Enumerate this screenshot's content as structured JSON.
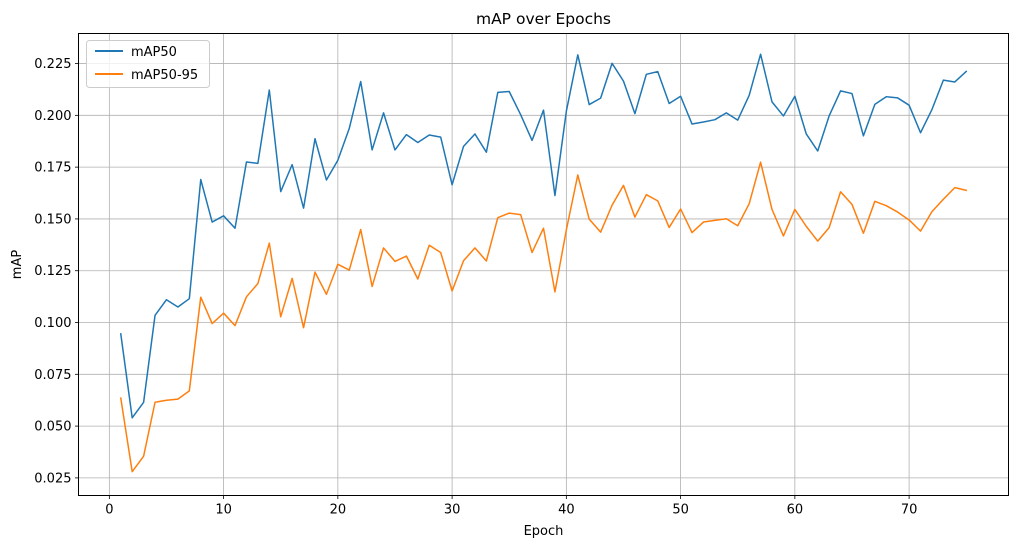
{
  "chart_data": {
    "type": "line",
    "title": "mAP over Epochs",
    "xlabel": "Epoch",
    "ylabel": "mAP",
    "xlim": [
      -2.7,
      78.7
    ],
    "ylim": [
      0.0165,
      0.2395
    ],
    "xticks": [
      0,
      10,
      20,
      30,
      40,
      50,
      60,
      70
    ],
    "xtick_labels": [
      "0",
      "10",
      "20",
      "30",
      "40",
      "50",
      "60",
      "70"
    ],
    "yticks": [
      0.025,
      0.05,
      0.075,
      0.1,
      0.125,
      0.15,
      0.175,
      0.2,
      0.225
    ],
    "ytick_labels": [
      "0.025",
      "0.050",
      "0.075",
      "0.100",
      "0.125",
      "0.150",
      "0.175",
      "0.200",
      "0.225"
    ],
    "grid": true,
    "legend_position": "top-left",
    "x": [
      1,
      2,
      3,
      4,
      5,
      6,
      7,
      8,
      9,
      10,
      11,
      12,
      13,
      14,
      15,
      16,
      17,
      18,
      19,
      20,
      21,
      22,
      23,
      24,
      25,
      26,
      27,
      28,
      29,
      30,
      31,
      32,
      33,
      34,
      35,
      36,
      37,
      38,
      39,
      40,
      41,
      42,
      43,
      44,
      45,
      46,
      47,
      48,
      49,
      50,
      51,
      52,
      53,
      54,
      55,
      56,
      57,
      58,
      59,
      60,
      61,
      62,
      63,
      64,
      65,
      66,
      67,
      68,
      69,
      70,
      71,
      72,
      73,
      74,
      75
    ],
    "series": [
      {
        "name": "mAP50",
        "color": "#1f77b4",
        "values": [
          0.0945,
          0.054,
          0.0615,
          0.1035,
          0.111,
          0.1075,
          0.1115,
          0.169,
          0.1485,
          0.1515,
          0.1455,
          0.1775,
          0.1768,
          0.2122,
          0.1632,
          0.1762,
          0.1552,
          0.1887,
          0.1688,
          0.1783,
          0.1937,
          0.2163,
          0.1833,
          0.2012,
          0.1833,
          0.1907,
          0.1869,
          0.1905,
          0.1895,
          0.1665,
          0.185,
          0.191,
          0.1822,
          0.2111,
          0.2115,
          0.2003,
          0.1879,
          0.2025,
          0.1613,
          0.202,
          0.2292,
          0.2052,
          0.2083,
          0.2251,
          0.2165,
          0.2008,
          0.2198,
          0.2211,
          0.2057,
          0.2092,
          0.1958,
          0.1968,
          0.1979,
          0.2012,
          0.1977,
          0.2096,
          0.2295,
          0.2065,
          0.1997,
          0.2092,
          0.191,
          0.1828,
          0.1997,
          0.2118,
          0.2105,
          0.1901,
          0.2053,
          0.209,
          0.2084,
          0.2049,
          0.1916,
          0.2028,
          0.217,
          0.2161,
          0.2212
        ]
      },
      {
        "name": "mAP50-95",
        "color": "#ff7f0e",
        "values": [
          0.0635,
          0.028,
          0.0355,
          0.0615,
          0.0625,
          0.063,
          0.067,
          0.1122,
          0.0995,
          0.1045,
          0.0985,
          0.1124,
          0.1188,
          0.1383,
          0.1028,
          0.1213,
          0.0975,
          0.1243,
          0.1136,
          0.1281,
          0.1253,
          0.1449,
          0.1174,
          0.136,
          0.1295,
          0.1321,
          0.121,
          0.1373,
          0.1338,
          0.1152,
          0.1298,
          0.136,
          0.1297,
          0.1506,
          0.1528,
          0.1521,
          0.1338,
          0.1455,
          0.1148,
          0.1447,
          0.1712,
          0.1499,
          0.1436,
          0.1566,
          0.1662,
          0.1509,
          0.1617,
          0.1587,
          0.1459,
          0.1548,
          0.1434,
          0.1485,
          0.1493,
          0.1501,
          0.1467,
          0.1573,
          0.1774,
          0.1546,
          0.1418,
          0.1546,
          0.1464,
          0.1393,
          0.1458,
          0.1631,
          0.157,
          0.1431,
          0.1585,
          0.1564,
          0.1533,
          0.1495,
          0.1441,
          0.1535,
          0.1595,
          0.1651,
          0.1638
        ]
      }
    ]
  }
}
